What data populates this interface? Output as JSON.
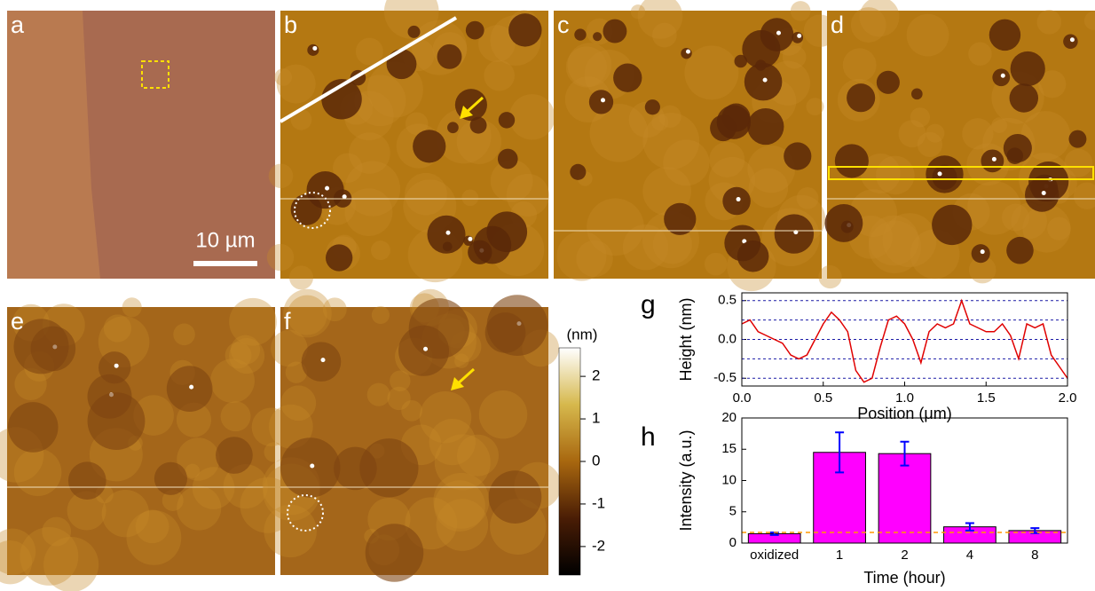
{
  "panels": [
    {
      "label": "a"
    },
    {
      "label": "b"
    },
    {
      "label": "c"
    },
    {
      "label": "d"
    },
    {
      "label": "e"
    },
    {
      "label": "f"
    }
  ],
  "scale_bar": {
    "label": "10 µm"
  },
  "colorbar": {
    "title": "(nm)",
    "clim": [
      -2.67,
      2.67
    ],
    "ticks": [
      2,
      1,
      0,
      -1,
      -2
    ]
  },
  "chart_data": [
    {
      "type": "line",
      "label": "g",
      "xlabel": "Position (μm)",
      "ylabel": "Height (nm)",
      "x": [
        0,
        0.05,
        0.1,
        0.15,
        0.2,
        0.25,
        0.3,
        0.35,
        0.4,
        0.45,
        0.5,
        0.55,
        0.6,
        0.65,
        0.7,
        0.75,
        0.8,
        0.85,
        0.9,
        0.95,
        1.0,
        1.05,
        1.1,
        1.15,
        1.2,
        1.25,
        1.3,
        1.35,
        1.4,
        1.45,
        1.5,
        1.55,
        1.6,
        1.65,
        1.7,
        1.75,
        1.8,
        1.85,
        1.9,
        1.95,
        2.0
      ],
      "series": [
        {
          "color": "#e00000",
          "values": [
            0.2,
            0.25,
            0.1,
            0.05,
            0.0,
            -0.05,
            -0.2,
            -0.25,
            -0.2,
            0.0,
            0.2,
            0.35,
            0.25,
            0.1,
            -0.4,
            -0.55,
            -0.5,
            -0.1,
            0.25,
            0.3,
            0.2,
            0.0,
            -0.3,
            0.1,
            0.2,
            0.15,
            0.2,
            0.5,
            0.2,
            0.15,
            0.1,
            0.1,
            0.2,
            0.05,
            -0.25,
            0.2,
            0.15,
            0.2,
            -0.2,
            -0.35,
            -0.5
          ]
        }
      ],
      "xlim": [
        0,
        2
      ],
      "xticks": [
        {
          "value": 0,
          "label": "0.0"
        },
        0.5,
        {
          "value": 1,
          "label": "1.0"
        },
        1.5,
        {
          "value": 2,
          "label": "2.0"
        }
      ],
      "ylim": [
        -0.6,
        0.6
      ],
      "yticks": [
        0.5,
        {
          "value": 0,
          "label": "0.0"
        },
        -0.5
      ],
      "grid_lines": [
        0.5,
        0.25,
        0,
        -0.25,
        -0.5
      ],
      "grid_color": "#1a1aa6"
    },
    {
      "type": "bar",
      "label": "h",
      "xlabel": "Time (hour)",
      "ylabel": "Intensity (a.u.)",
      "categories": [
        "oxidized",
        "1",
        "2",
        "4",
        "8"
      ],
      "values": [
        1.5,
        14.5,
        14.3,
        2.6,
        2.0
      ],
      "errors": [
        0.2,
        3.2,
        1.9,
        0.6,
        0.4
      ],
      "color": "#ff00ff",
      "error_color": "#0000ff",
      "ylim": [
        0,
        20
      ],
      "yticks": [
        0,
        5,
        10,
        15,
        20
      ],
      "reference_line": 1.7,
      "reference_color": "#ff9900"
    }
  ]
}
